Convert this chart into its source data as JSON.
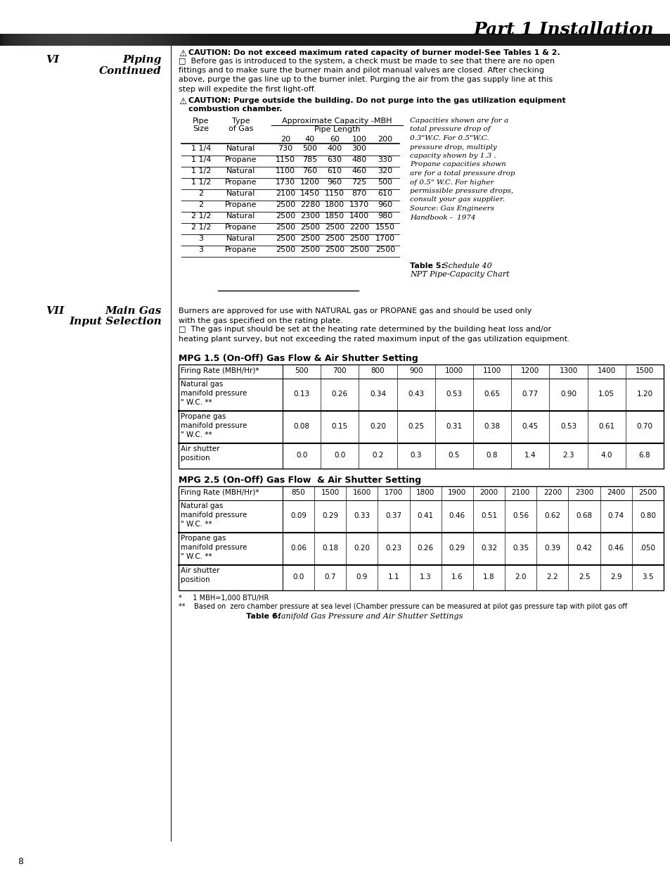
{
  "title": "Part 1 Installation",
  "section_vi_label": "VI",
  "section_vi_title": "Piping\nContinued",
  "caution1_bold": "CAUTION: Do not exceed maximum rated capacity of burner model-See Tables 1 & 2.",
  "caution1_body": "□  Before gas is introduced to the system, a check must be made to see that there are no open\nfittings and to make sure the burner main and pilot manual valves are closed. After checking\nabove, purge the gas line up to the burner inlet. Purging the air from the gas supply line at this\nstep will expedite the first light-off.",
  "caution2_bold": "CAUTION: Purge outside the building. Do not purge into the gas utilization equipment\ncombustion chamber.",
  "table5_note": "Capacities shown are for a\ntotal pressure drop of\n0.3\"W.C. For 0.5\"W.C.\npressure drop, multiply\ncapacity shown by 1.3 .\nPropane capacities shown\nare for a total pressure drop\nof 0.5\" W.C. For higher\npermissible pressure drops,\nconsult your gas supplier.\nSource: Gas Engineers\nHandbook -  1974",
  "table5_label": "Table 5:",
  "table5_sublabel": " Schedule 40\nNPT Pipe-Capacity Chart",
  "pipe_table_rows": [
    [
      "1 1/4",
      "Natural",
      "730",
      "500",
      "400",
      "300",
      ""
    ],
    [
      "1 1/4",
      "Propane",
      "1150",
      "785",
      "630",
      "480",
      "330"
    ],
    [
      "1 1/2",
      "Natural",
      "1100",
      "760",
      "610",
      "460",
      "320"
    ],
    [
      "1 1/2",
      "Propane",
      "1730",
      "1200",
      "960",
      "725",
      "500"
    ],
    [
      "2",
      "Natural",
      "2100",
      "1450",
      "1150",
      "870",
      "610"
    ],
    [
      "2",
      "Propane",
      "2500",
      "2280",
      "1800",
      "1370",
      "960"
    ],
    [
      "2 1/2",
      "Natural",
      "2500",
      "2300",
      "1850",
      "1400",
      "980"
    ],
    [
      "2 1/2",
      "Propane",
      "2500",
      "2500",
      "2500",
      "2200",
      "1550"
    ],
    [
      "3",
      "Natural",
      "2500",
      "2500",
      "2500",
      "2500",
      "1700"
    ],
    [
      "3",
      "Propane",
      "2500",
      "2500",
      "2500",
      "2500",
      "2500"
    ]
  ],
  "section_vii_label": "VII",
  "vii_text1": "Burners are approved for use with NATURAL gas or PROPANE gas and should be used only\nwith the gas specified on the rating plate.",
  "vii_text2": "□  The gas input should be set at the heating rate determined by the building heat loss and/or\nheating plant survey, but not exceeding the rated maximum input of the gas utilization equipment.",
  "mpg15_title": "MPG 1.5 (On-Off) Gas Flow & Air Shutter Setting",
  "mpg15_firing": [
    "500",
    "700",
    "800",
    "900",
    "1000",
    "1100",
    "1200",
    "1300",
    "1400",
    "1500"
  ],
  "mpg15_natural": [
    "0.13",
    "0.26",
    "0.34",
    "0.43",
    "0.53",
    "0.65",
    "0.77",
    "0.90",
    "1.05",
    "1.20"
  ],
  "mpg15_propane": [
    "0.08",
    "0.15",
    "0.20",
    "0.25",
    "0.31",
    "0.38",
    "0.45",
    "0.53",
    "0.61",
    "0.70"
  ],
  "mpg15_air": [
    "0.0",
    "0.0",
    "0.2",
    "0.3",
    "0.5",
    "0.8",
    "1.4",
    "2.3",
    "4.0",
    "6.8"
  ],
  "mpg25_title": "MPG 2.5 (On-Off) Gas Flow  & Air Shutter Setting",
  "mpg25_firing": [
    "850",
    "1500",
    "1600",
    "1700",
    "1800",
    "1900",
    "2000",
    "2100",
    "2200",
    "2300",
    "2400",
    "2500"
  ],
  "mpg25_natural": [
    "0.09",
    "0.29",
    "0.33",
    "0.37",
    "0.41",
    "0.46",
    "0.51",
    "0.56",
    "0.62",
    "0.68",
    "0.74",
    "0.80"
  ],
  "mpg25_propane": [
    "0.06",
    "0.18",
    "0.20",
    "0.23",
    "0.26",
    "0.29",
    "0.32",
    "0.35",
    "0.39",
    "0.42",
    "0.46",
    ".050"
  ],
  "mpg25_air": [
    "0.0",
    "0.7",
    "0.9",
    "1.1",
    "1.3",
    "1.6",
    "1.8",
    "2.0",
    "2.2",
    "2.5",
    "2.9",
    "3.5"
  ],
  "footnote1": "*     1 MBH=1,000 BTU/HR",
  "footnote2": "**    Based on  zero chamber pressure at sea level (Chamber pressure can be measured at pilot gas pressure tap with pilot gas off",
  "table6_label": "Table 6:",
  "table6_sublabel": " Manifold Gas Pressure and Air Shutter Settings",
  "page_number": "8",
  "bg_color": "#ffffff"
}
